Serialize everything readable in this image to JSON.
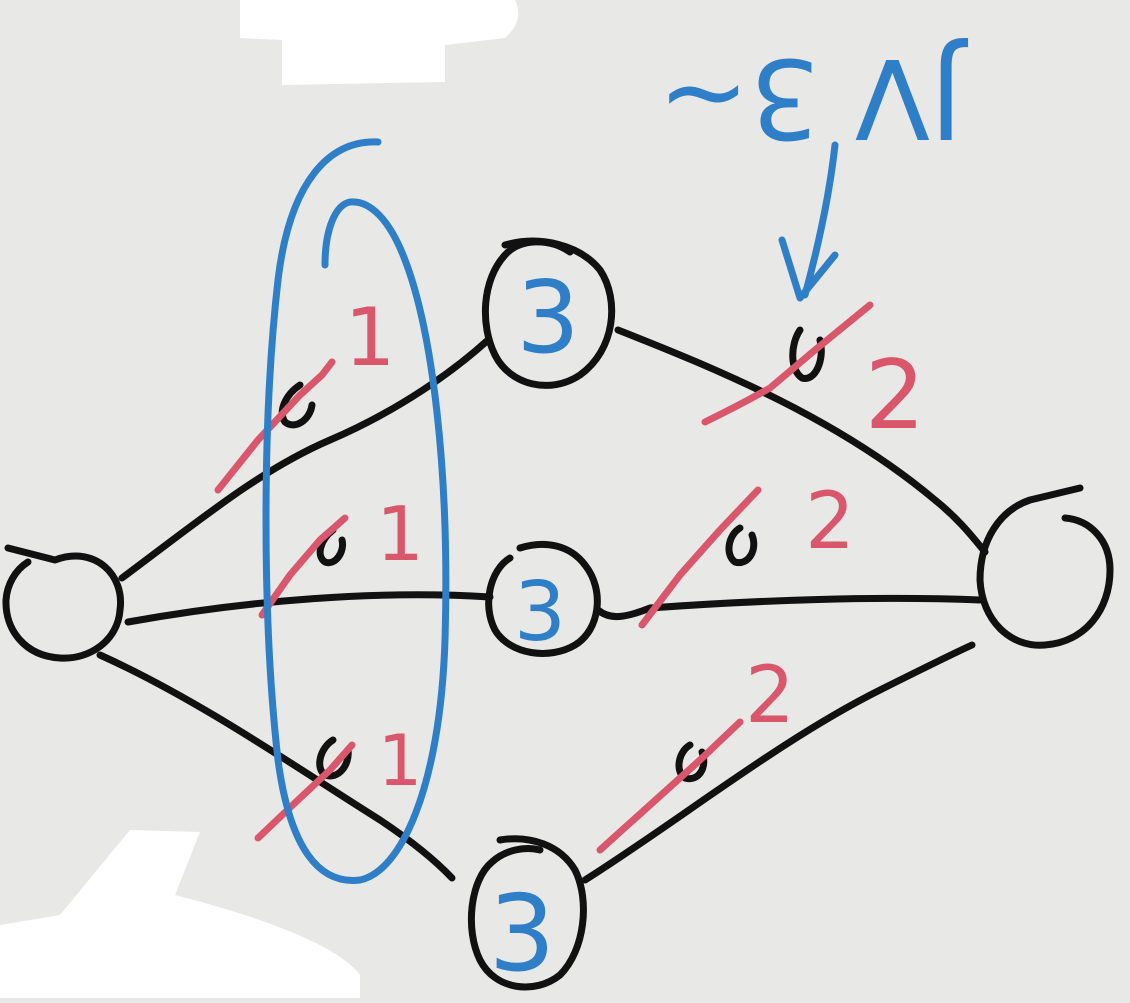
{
  "colors": {
    "background": "#e8e8e6",
    "black_ink": "#111111",
    "blue_ink": "#2f7fc8",
    "red_ink": "#d9566b",
    "white_patch": "#ffffff"
  },
  "annotation": {
    "text": "JV 3~",
    "rendered_upside_down": true
  },
  "nodes": {
    "source": {
      "label": ""
    },
    "top": {
      "label": "3"
    },
    "middle": {
      "label": "3"
    },
    "bottom": {
      "label": "3"
    },
    "sink": {
      "label": ""
    }
  },
  "edge_labels": {
    "left_top": "1",
    "left_middle": "1",
    "left_bottom": "1",
    "right_top": "2",
    "right_middle": "2",
    "right_bottom": "2"
  }
}
